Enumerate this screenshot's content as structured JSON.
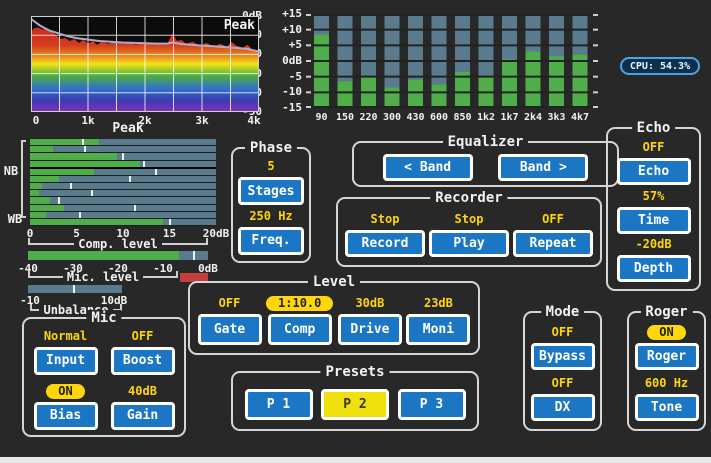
{
  "colors": {
    "app_bg": "#282828",
    "panel_border": "#d6d6d6",
    "text_white": "#f2f2f2",
    "accent_yellow": "#ffd60a",
    "button_blue": "#1b77c4",
    "button_border": "#ffffff",
    "active_yellow": "#f0e10c",
    "meter_track": "#5a7a8e",
    "meter_green": "#4fae4a",
    "clip_red": "#c24040",
    "spectrum_mask": "#0c0c0c",
    "peak_line": "#b5a8cc",
    "grid_white": "rgba(255,255,255,0.8)",
    "grid_dark": "#222222",
    "cpu_bg": "#0e3050",
    "cpu_border": "#4fa3e3",
    "rainbow": [
      [
        "0%",
        "#cc1f1f"
      ],
      [
        "30%",
        "#d43a1e"
      ],
      [
        "42%",
        "#ea8c1a"
      ],
      [
        "50%",
        "#f2e41c"
      ],
      [
        "62%",
        "#4fb03c"
      ],
      [
        "76%",
        "#2f6fd0"
      ],
      [
        "88%",
        "#3b3bb0"
      ],
      [
        "100%",
        "#8a2fb8"
      ]
    ]
  },
  "cpu": {
    "label": "CPU: 54.3%"
  },
  "spectrum": {
    "type": "area",
    "title": "Peak",
    "y_ticks": [
      "0dB",
      "-10",
      "-20",
      "-30",
      "-40",
      "-50"
    ],
    "x_ticks": [
      "0",
      "1k",
      "2k",
      "3k",
      "4k"
    ],
    "ylim": [
      -50,
      0
    ],
    "xlim_hz": [
      0,
      4000
    ],
    "envelope_db": [
      [
        0,
        -9
      ],
      [
        0.01,
        -6.5
      ],
      [
        0.03,
        -6
      ],
      [
        0.05,
        -7
      ],
      [
        0.07,
        -6.5
      ],
      [
        0.09,
        -8
      ],
      [
        0.11,
        -10
      ],
      [
        0.13,
        -12
      ],
      [
        0.15,
        -11.5
      ],
      [
        0.17,
        -13
      ],
      [
        0.19,
        -12
      ],
      [
        0.21,
        -14
      ],
      [
        0.23,
        -12.5
      ],
      [
        0.25,
        -14.5
      ],
      [
        0.27,
        -13
      ],
      [
        0.29,
        -15
      ],
      [
        0.31,
        -13.5
      ],
      [
        0.34,
        -14.5
      ],
      [
        0.37,
        -13
      ],
      [
        0.4,
        -14.5
      ],
      [
        0.43,
        -13.5
      ],
      [
        0.46,
        -15
      ],
      [
        0.49,
        -13.5
      ],
      [
        0.52,
        -14.5
      ],
      [
        0.55,
        -13.8
      ],
      [
        0.58,
        -15
      ],
      [
        0.6,
        -14
      ],
      [
        0.62,
        -9
      ],
      [
        0.64,
        -13
      ],
      [
        0.66,
        -12.5
      ],
      [
        0.68,
        -14.5
      ],
      [
        0.71,
        -13.5
      ],
      [
        0.74,
        -15.5
      ],
      [
        0.77,
        -14
      ],
      [
        0.8,
        -16
      ],
      [
        0.83,
        -14.5
      ],
      [
        0.86,
        -16
      ],
      [
        0.88,
        -13.5
      ],
      [
        0.9,
        -15.5
      ],
      [
        0.93,
        -16.5
      ],
      [
        0.95,
        -15
      ],
      [
        0.97,
        -17.5
      ],
      [
        1,
        -19
      ]
    ],
    "peak_line_db": [
      [
        0,
        -1.5
      ],
      [
        0.04,
        -5
      ],
      [
        0.08,
        -7.5
      ],
      [
        0.12,
        -9
      ],
      [
        0.16,
        -10.5
      ],
      [
        0.2,
        -11.5
      ],
      [
        0.25,
        -12.3
      ],
      [
        0.3,
        -13
      ],
      [
        0.35,
        -13.4
      ],
      [
        0.4,
        -13.8
      ],
      [
        0.45,
        -14
      ],
      [
        0.5,
        -14.2
      ],
      [
        0.55,
        -14.4
      ],
      [
        0.6,
        -14.3
      ],
      [
        0.62,
        -13.8
      ],
      [
        0.66,
        -14.6
      ],
      [
        0.7,
        -15
      ],
      [
        0.75,
        -15.4
      ],
      [
        0.8,
        -15.8
      ],
      [
        0.85,
        -16.2
      ],
      [
        0.9,
        -16.6
      ],
      [
        0.95,
        -17.2
      ],
      [
        1,
        -18.5
      ]
    ]
  },
  "eq_chart": {
    "type": "bar",
    "categories": [
      "90",
      "150",
      "220",
      "300",
      "430",
      "600",
      "850",
      "1k2",
      "1k7",
      "2k4",
      "3k3",
      "4k7"
    ],
    "values": [
      8.5,
      -6.5,
      -5,
      -8.5,
      -6,
      -7.5,
      -3.5,
      -5,
      0.5,
      3,
      1.5,
      2
    ],
    "y_ticks": [
      "+15",
      "+10",
      "+5",
      "0dB",
      "-5",
      "-10",
      "-15"
    ],
    "ylim": [
      -15,
      15
    ]
  },
  "peak_meter": {
    "title": "Peak",
    "nb_label": "NB",
    "wb_label": "WB",
    "scale": [
      "0",
      "5",
      "10",
      "15",
      "20dB"
    ],
    "max": 20,
    "separator_after_row": 4,
    "rows": [
      {
        "value": 7.4,
        "peak": 5.6
      },
      {
        "value": 2.5,
        "peak": 5.8
      },
      {
        "value": 9.4,
        "peak": 9.9
      },
      {
        "value": 11.8,
        "peak": 12.1
      },
      {
        "value": 6.9,
        "peak": 13.4
      },
      {
        "value": 3.1,
        "peak": 10.6
      },
      {
        "value": 1.3,
        "peak": 4.3
      },
      {
        "value": 1.0,
        "peak": 6.6
      },
      {
        "value": 2.1,
        "peak": 3.0
      },
      {
        "value": 3.7,
        "peak": 11.2
      },
      {
        "value": 1.7,
        "peak": 5.3
      },
      {
        "value": 14.3,
        "peak": 14.9
      }
    ]
  },
  "comp_meter": {
    "label": "Comp. level",
    "scale": [
      "-40",
      "-30",
      "-20",
      "-10",
      "0dB"
    ],
    "min": -40,
    "max": 0,
    "value": -6.5,
    "peak": -3.4
  },
  "mic_meter": {
    "label": "Mic. level",
    "clipping": true
  },
  "unbalance_meter": {
    "label": "Unbalance",
    "scale_left": "-10",
    "scale_right": "10dB",
    "tick_fraction": 0.48
  },
  "panels": {
    "phase": {
      "title": "Phase",
      "items": [
        {
          "status": "5",
          "button": "Stages"
        },
        {
          "status": "250 Hz",
          "button": "Freq."
        }
      ]
    },
    "equalizer": {
      "title": "Equalizer",
      "items": [
        {
          "button": "< Band"
        },
        {
          "button": "Band >"
        }
      ]
    },
    "recorder": {
      "title": "Recorder",
      "items": [
        {
          "status": "Stop",
          "button": "Record"
        },
        {
          "status": "Stop",
          "button": "Play"
        },
        {
          "status": "OFF",
          "button": "Repeat"
        }
      ]
    },
    "level": {
      "title": "Level",
      "items": [
        {
          "status": "OFF",
          "button": "Gate"
        },
        {
          "status": "1:10.0",
          "button": "Comp",
          "pill": true
        },
        {
          "status": "30dB",
          "button": "Drive"
        },
        {
          "status": "23dB",
          "button": "Moni"
        }
      ]
    },
    "echo": {
      "title": "Echo",
      "items": [
        {
          "status": "OFF",
          "button": "Echo"
        },
        {
          "status": "57%",
          "button": "Time"
        },
        {
          "status": "-20dB",
          "button": "Depth"
        }
      ]
    },
    "mode": {
      "title": "Mode",
      "items": [
        {
          "status": "OFF",
          "button": "Bypass"
        },
        {
          "status": "OFF",
          "button": "DX"
        }
      ]
    },
    "roger": {
      "title": "Roger",
      "items": [
        {
          "status": "ON",
          "button": "Roger",
          "pill": true
        },
        {
          "status": "600 Hz",
          "button": "Tone"
        }
      ]
    },
    "mic": {
      "title": "Mic",
      "items": [
        {
          "status": "Normal",
          "button": "Input"
        },
        {
          "status": "OFF",
          "button": "Boost"
        },
        {
          "status": "ON",
          "button": "Bias",
          "pill": true
        },
        {
          "status": "40dB",
          "button": "Gain"
        }
      ]
    },
    "presets": {
      "title": "Presets",
      "items": [
        {
          "button": "P 1",
          "active": false
        },
        {
          "button": "P 2",
          "active": true
        },
        {
          "button": "P 3",
          "active": false
        }
      ]
    }
  }
}
